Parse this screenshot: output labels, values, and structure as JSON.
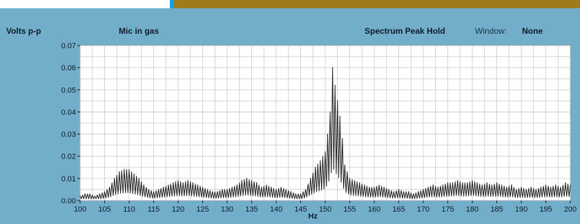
{
  "header": {
    "y_unit": "Volts p-p",
    "channel": "Mic in gas",
    "mode": "Spectrum Peak Hold",
    "window_label": "Window:",
    "window_value": "None"
  },
  "colors": {
    "panel": "#72aec9",
    "plot_bg": "#ffffff",
    "grid": "#c8c8c8",
    "trace": "#1a1a1a",
    "top_accent": "#9e7c1c"
  },
  "chart_data": {
    "type": "line",
    "title": "Spectrum Peak Hold",
    "xlabel": "Hz",
    "ylabel": "Volts p-p",
    "xlim": [
      100,
      200
    ],
    "ylim": [
      0,
      0.07
    ],
    "x_ticks": [
      100,
      105,
      110,
      115,
      120,
      125,
      130,
      135,
      140,
      145,
      150,
      155,
      160,
      165,
      170,
      175,
      180,
      185,
      190,
      195,
      200
    ],
    "y_ticks": [
      0.0,
      0.01,
      0.02,
      0.03,
      0.04,
      0.05,
      0.06,
      0.07
    ],
    "y_tick_labels": [
      "0.00",
      "0.01",
      "0.02",
      "0.03",
      "0.04",
      "0.05",
      "0.06",
      "0.07"
    ],
    "grid": true,
    "series": [
      {
        "x": [
          100,
          101,
          102,
          103,
          104,
          105,
          106,
          107,
          108,
          109,
          110,
          111,
          112,
          113,
          114,
          115,
          116,
          117,
          118,
          119,
          120,
          121,
          122,
          123,
          124,
          125,
          126,
          127,
          128,
          129,
          130,
          131,
          132,
          133,
          134,
          135,
          136,
          137,
          138,
          139,
          140,
          141,
          142,
          143,
          144,
          145,
          146,
          147,
          148,
          149,
          150,
          150.5,
          151,
          151.5,
          152,
          152.5,
          153,
          153.5,
          154,
          155,
          156,
          157,
          158,
          159,
          160,
          161,
          162,
          163,
          164,
          165,
          166,
          167,
          168,
          169,
          170,
          171,
          172,
          173,
          174,
          175,
          176,
          177,
          178,
          179,
          180,
          181,
          182,
          183,
          184,
          185,
          186,
          187,
          188,
          189,
          190,
          191,
          192,
          193,
          194,
          195,
          196,
          197,
          198,
          199,
          200
        ],
        "y": [
          0.002,
          0.003,
          0.003,
          0.002,
          0.003,
          0.004,
          0.006,
          0.01,
          0.013,
          0.014,
          0.014,
          0.012,
          0.01,
          0.007,
          0.005,
          0.004,
          0.005,
          0.006,
          0.007,
          0.008,
          0.009,
          0.008,
          0.009,
          0.008,
          0.007,
          0.006,
          0.005,
          0.004,
          0.004,
          0.005,
          0.005,
          0.006,
          0.007,
          0.009,
          0.01,
          0.009,
          0.008,
          0.006,
          0.007,
          0.006,
          0.005,
          0.006,
          0.005,
          0.004,
          0.003,
          0.003,
          0.005,
          0.01,
          0.015,
          0.018,
          0.022,
          0.03,
          0.04,
          0.06,
          0.052,
          0.045,
          0.038,
          0.028,
          0.016,
          0.01,
          0.009,
          0.008,
          0.007,
          0.006,
          0.006,
          0.007,
          0.006,
          0.005,
          0.004,
          0.005,
          0.004,
          0.004,
          0.003,
          0.004,
          0.005,
          0.006,
          0.007,
          0.006,
          0.007,
          0.008,
          0.008,
          0.009,
          0.008,
          0.008,
          0.009,
          0.008,
          0.007,
          0.008,
          0.007,
          0.008,
          0.007,
          0.006,
          0.007,
          0.005,
          0.006,
          0.005,
          0.006,
          0.005,
          0.006,
          0.007,
          0.006,
          0.007,
          0.006,
          0.008,
          0.007
        ]
      }
    ]
  }
}
